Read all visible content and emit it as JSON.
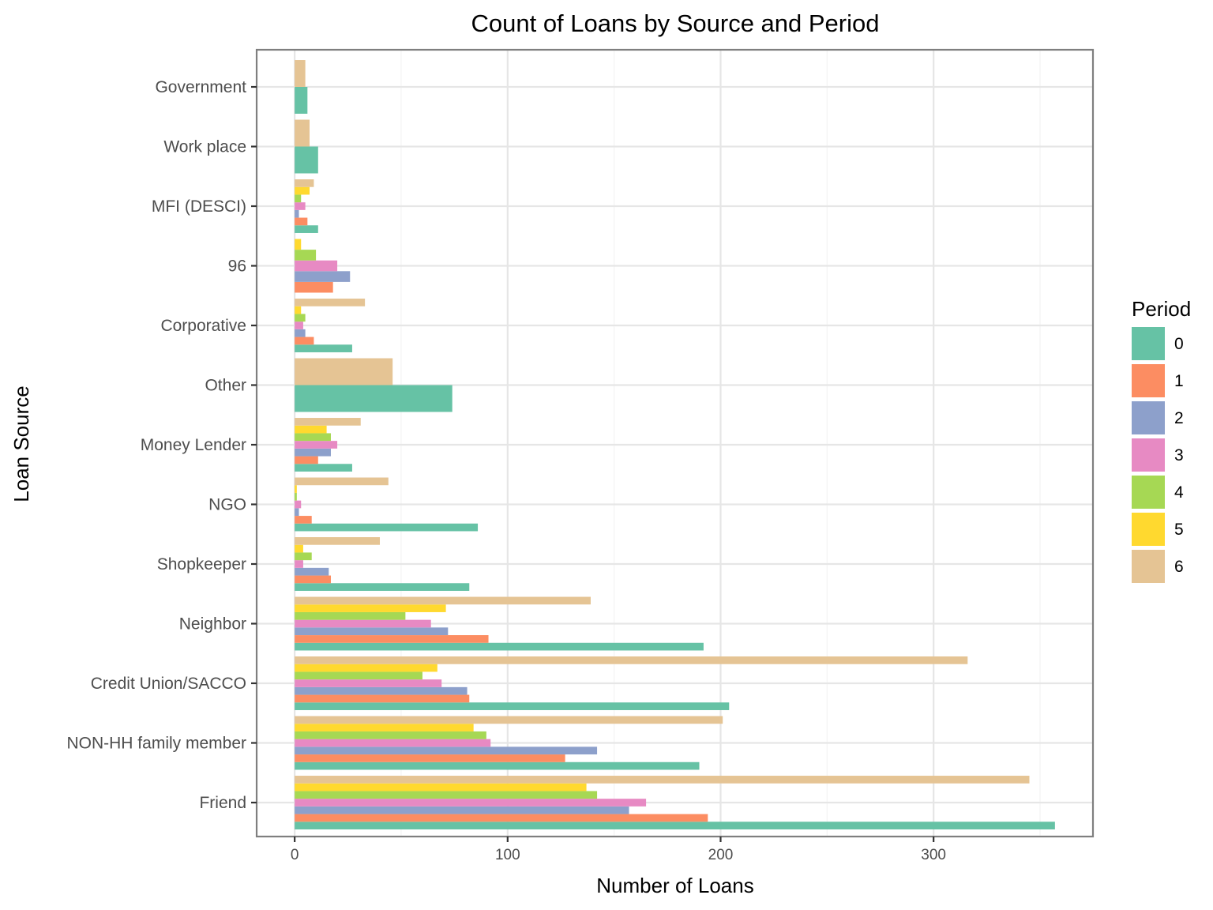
{
  "chart_data": {
    "type": "bar",
    "orientation": "horizontal",
    "title": "Count of Loans by Source and Period",
    "xlabel": "Number of Loans",
    "ylabel": "Loan Source",
    "xlim": [
      -17.85,
      374.85
    ],
    "xticks": [
      0,
      100,
      200,
      300
    ],
    "xtick_labels": [
      "0",
      "100",
      "200",
      "300"
    ],
    "grid": true,
    "legend": {
      "title": "Period",
      "placement": "right"
    },
    "categories": [
      "Government",
      "Work place",
      "MFI (DESCI)",
      "96",
      "Corporative",
      "Other",
      "Money Lender",
      "NGO",
      "Shopkeeper",
      "Neighbor",
      "Credit Union/SACCO",
      "NON-HH family member",
      "Friend"
    ],
    "series": [
      {
        "name": "0",
        "color": "#66c2a5",
        "values": [
          6,
          11,
          11,
          null,
          27,
          74,
          27,
          86,
          82,
          192,
          204,
          190,
          357
        ]
      },
      {
        "name": "1",
        "color": "#fc8d62",
        "values": [
          null,
          null,
          6,
          18,
          9,
          null,
          11,
          8,
          17,
          91,
          82,
          127,
          194
        ]
      },
      {
        "name": "2",
        "color": "#8da0cb",
        "values": [
          null,
          null,
          2,
          26,
          5,
          null,
          17,
          2,
          16,
          72,
          81,
          142,
          157
        ]
      },
      {
        "name": "3",
        "color": "#e78ac3",
        "values": [
          null,
          null,
          5,
          20,
          4,
          null,
          20,
          3,
          4,
          64,
          69,
          92,
          165
        ]
      },
      {
        "name": "4",
        "color": "#a6d854",
        "values": [
          null,
          null,
          3,
          10,
          5,
          null,
          17,
          1,
          8,
          52,
          60,
          90,
          142
        ]
      },
      {
        "name": "5",
        "color": "#ffd92f",
        "values": [
          null,
          null,
          7,
          3,
          3,
          null,
          15,
          1,
          4,
          71,
          67,
          84,
          137
        ]
      },
      {
        "name": "6",
        "color": "#e5c494",
        "values": [
          5,
          7,
          9,
          null,
          33,
          46,
          31,
          44,
          40,
          139,
          316,
          201,
          345
        ]
      }
    ]
  }
}
